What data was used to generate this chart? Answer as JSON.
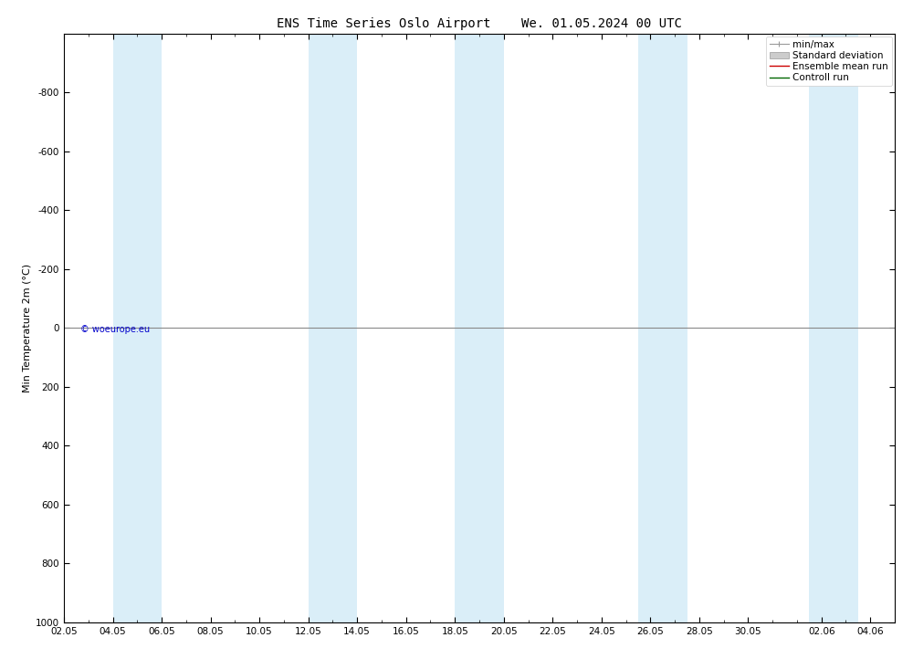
{
  "title_left": "ENS Time Series Oslo Airport",
  "title_right": "We. 01.05.2024 00 UTC",
  "ylabel": "Min Temperature 2m (°C)",
  "copyright": "© woeurope.eu",
  "xlim": [
    2,
    36
  ],
  "ylim_top": -1000,
  "ylim_bottom": 1000,
  "yticks": [
    -800,
    -600,
    -400,
    -200,
    0,
    200,
    400,
    600,
    800,
    1000
  ],
  "xtick_labels": [
    "02.05",
    "04.05",
    "06.05",
    "08.05",
    "10.05",
    "12.05",
    "14.05",
    "16.05",
    "18.05",
    "20.05",
    "22.05",
    "24.05",
    "26.05",
    "28.05",
    "30.05",
    "02.06",
    "04.06"
  ],
  "xtick_positions": [
    2,
    4,
    6,
    8,
    10,
    12,
    14,
    16,
    18,
    20,
    22,
    24,
    26,
    28,
    30,
    33,
    35
  ],
  "blue_band_centers": [
    5,
    13,
    19,
    26.5,
    33.5
  ],
  "blue_band_halfwidths": [
    1,
    1,
    1,
    1,
    1
  ],
  "blue_band_color": "#daeef8",
  "background_color": "#ffffff",
  "hline_color": "#888888",
  "hline_lw": 0.8,
  "legend_items": [
    {
      "label": "min/max",
      "type": "minmax",
      "color": "#999999"
    },
    {
      "label": "Standard deviation",
      "type": "patch",
      "color": "#cccccc"
    },
    {
      "label": "Ensemble mean run",
      "type": "line",
      "color": "#cc0000"
    },
    {
      "label": "Controll run",
      "type": "line",
      "color": "#006600"
    }
  ],
  "title_fontsize": 10,
  "legend_fontsize": 7.5,
  "ylabel_fontsize": 8,
  "tick_fontsize": 7.5,
  "copyright_fontsize": 7,
  "copyright_color": "#0000cc"
}
